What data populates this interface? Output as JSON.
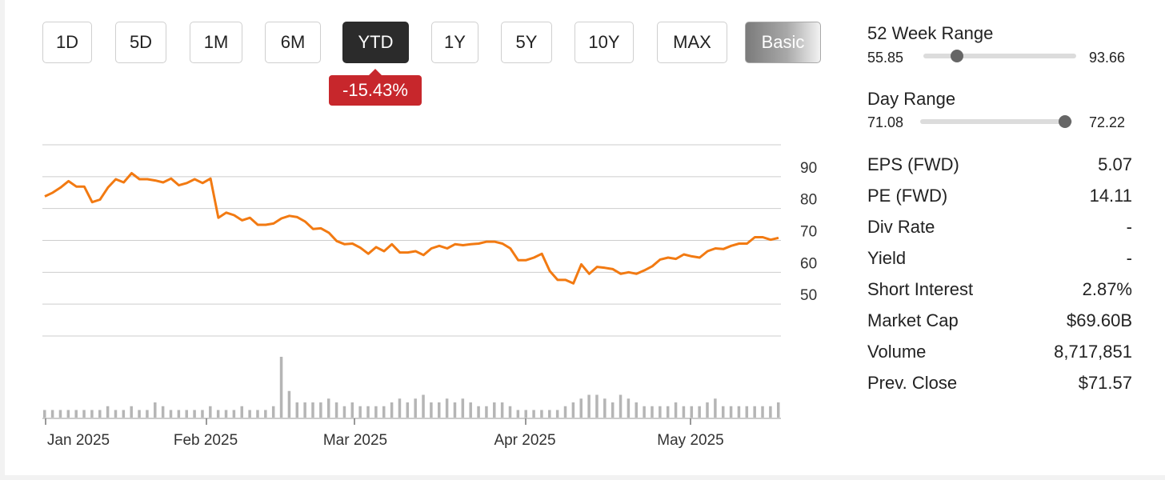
{
  "range_buttons": [
    "1D",
    "5D",
    "1M",
    "6M",
    "YTD",
    "1Y",
    "5Y",
    "10Y",
    "MAX"
  ],
  "active_range": "YTD",
  "mode_button": "Basic",
  "ytd_change": "-15.43%",
  "colors": {
    "price_line": "#f27a12",
    "volume_bars": "#b5b5b5",
    "change_badge": "#c7272c"
  },
  "week52": {
    "label": "52 Week Range",
    "low": "55.85",
    "high": "93.66",
    "position": 0.22
  },
  "day_range": {
    "label": "Day Range",
    "low": "71.08",
    "high": "72.22",
    "position": 0.95
  },
  "stats": [
    {
      "label": "EPS (FWD)",
      "value": "5.07"
    },
    {
      "label": "PE (FWD)",
      "value": "14.11"
    },
    {
      "label": "Div Rate",
      "value": "-"
    },
    {
      "label": "Yield",
      "value": "-"
    },
    {
      "label": "Short Interest",
      "value": "2.87%"
    },
    {
      "label": "Market Cap",
      "value": "$69.60B"
    },
    {
      "label": "Volume",
      "value": "8,717,851"
    },
    {
      "label": "Prev. Close",
      "value": "$71.57"
    }
  ],
  "chart_data": {
    "type": "line",
    "title": "",
    "xlabel": "",
    "ylabel": "",
    "x_ticks": [
      "Jan 2025",
      "Feb 2025",
      "Mar 2025",
      "Apr 2025",
      "May 2025"
    ],
    "y_ticks": [
      50,
      60,
      70,
      80,
      90
    ],
    "ylim": [
      40,
      100
    ],
    "grid": true,
    "x": [
      1,
      2,
      3,
      4,
      5,
      6,
      7,
      8,
      9,
      10,
      11,
      12,
      13,
      14,
      15,
      16,
      17,
      18,
      19,
      20,
      21,
      22,
      23,
      24,
      25,
      26,
      27,
      28,
      29,
      30,
      31,
      32,
      33,
      34,
      35,
      36,
      37,
      38,
      39,
      40,
      41,
      42,
      43,
      44,
      45,
      46,
      47,
      48,
      49,
      50,
      51,
      52,
      53,
      54,
      55,
      56,
      57,
      58,
      59,
      60,
      61,
      62,
      63,
      64,
      65,
      66,
      67,
      68,
      69,
      70,
      71,
      72,
      73,
      74,
      75,
      76,
      77,
      78,
      79,
      80,
      81,
      82,
      83,
      84,
      85,
      86,
      87,
      88,
      89,
      90,
      91,
      92,
      93,
      94
    ],
    "series": [
      {
        "values": [
          83.8,
          85.0,
          86.6,
          88.6,
          86.9,
          86.9,
          82.0,
          82.8,
          86.6,
          89.2,
          88.2,
          91.1,
          89.2,
          89.2,
          88.8,
          88.2,
          89.4,
          87.3,
          88.0,
          89.2,
          88.0,
          89.4,
          77.1,
          78.7,
          77.9,
          76.3,
          77.1,
          74.9,
          74.9,
          75.3,
          76.9,
          77.7,
          77.3,
          75.9,
          73.6,
          73.8,
          72.4,
          69.8,
          68.8,
          69.0,
          67.7,
          65.8,
          67.9,
          66.6,
          68.8,
          66.2,
          66.2,
          66.6,
          65.4,
          67.5,
          68.3,
          67.5,
          68.8,
          68.5,
          68.8,
          69.0,
          69.6,
          69.6,
          69.0,
          67.5,
          63.8,
          63.8,
          64.6,
          65.8,
          60.4,
          57.6,
          57.6,
          56.5,
          62.5,
          59.5,
          61.7,
          61.4,
          61.0,
          59.5,
          60.0,
          59.5,
          60.6,
          61.9,
          64.0,
          64.6,
          64.2,
          65.6,
          65.0,
          64.6,
          66.6,
          67.5,
          67.3,
          68.3,
          69.0,
          69.0,
          71.0,
          71.0,
          70.2,
          70.8
        ]
      },
      {
        "name": "Volume",
        "values": [
          2,
          2,
          2,
          2,
          2,
          2,
          2,
          2,
          3,
          2,
          2,
          3,
          2,
          2,
          4,
          3,
          2,
          2,
          2,
          2,
          2,
          3,
          2,
          2,
          2,
          3,
          2,
          2,
          2,
          3,
          16,
          7,
          4,
          4,
          4,
          4,
          5,
          4,
          3,
          4,
          3,
          3,
          3,
          3,
          4,
          5,
          4,
          5,
          6,
          4,
          4,
          5,
          4,
          5,
          4,
          3,
          3,
          4,
          4,
          3,
          2,
          2,
          2,
          2,
          2,
          2,
          3,
          4,
          5,
          6,
          6,
          5,
          4,
          6,
          5,
          4,
          3,
          3,
          3,
          3,
          4,
          3,
          3,
          3,
          4,
          5,
          3,
          3,
          3,
          3,
          3,
          3,
          3,
          4
        ]
      }
    ],
    "volume_note": "volume bars drawn beneath the price line, relative heights"
  }
}
